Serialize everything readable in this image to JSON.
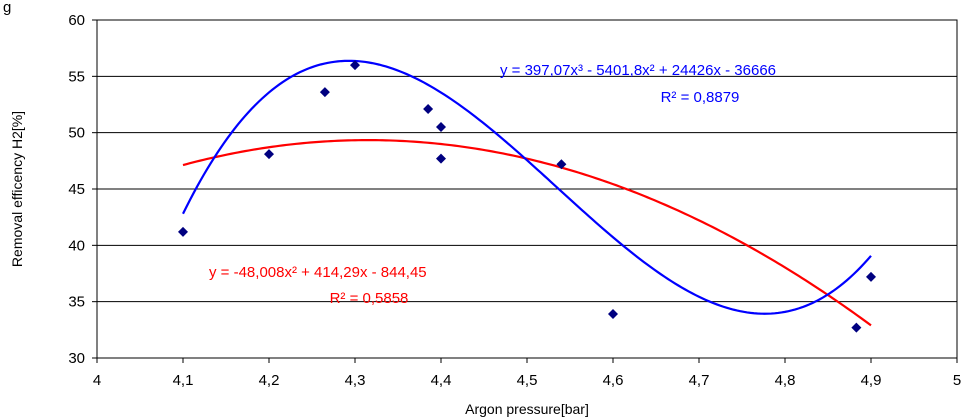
{
  "header_text": "g",
  "chart_data": {
    "type": "scatter",
    "xlabel": "Argon pressure[bar]",
    "ylabel": "Removal efficency H2[%]",
    "xlim": [
      4,
      5
    ],
    "ylim": [
      30,
      60
    ],
    "x_ticks": [
      "4",
      "4,1",
      "4,2",
      "4,3",
      "4,4",
      "4,5",
      "4,6",
      "4,7",
      "4,8",
      "4,9",
      "5"
    ],
    "y_ticks": [
      "30",
      "35",
      "40",
      "45",
      "50",
      "55",
      "60"
    ],
    "grid": "horizontal",
    "series": [
      {
        "marker": "diamond",
        "color": "#000080",
        "x": [
          4.1,
          4.2,
          4.265,
          4.3,
          4.385,
          4.4,
          4.4,
          4.54,
          4.6,
          4.883,
          4.9
        ],
        "y": [
          41.2,
          48.1,
          53.6,
          56.0,
          52.1,
          50.5,
          47.7,
          47.2,
          33.9,
          32.7,
          37.2
        ]
      }
    ],
    "trendlines": [
      {
        "type": "polynomial-2",
        "color": "#ff0000",
        "coefficients": [
          -48.008,
          414.29,
          -844.45
        ],
        "x_range": [
          4.1,
          4.9
        ],
        "equation": "y = -48,008x² + 414,29x - 844,45",
        "r2": "R² = 0,5858"
      },
      {
        "type": "polynomial-3",
        "color": "#0000ff",
        "coefficients": [
          397.07,
          -5401.8,
          24426,
          -36666
        ],
        "x_range": [
          4.1,
          4.9
        ],
        "equation": "y = 397,07x³ - 5401,8x² + 24426x - 36666",
        "r2": "R² = 0,8879"
      }
    ]
  }
}
